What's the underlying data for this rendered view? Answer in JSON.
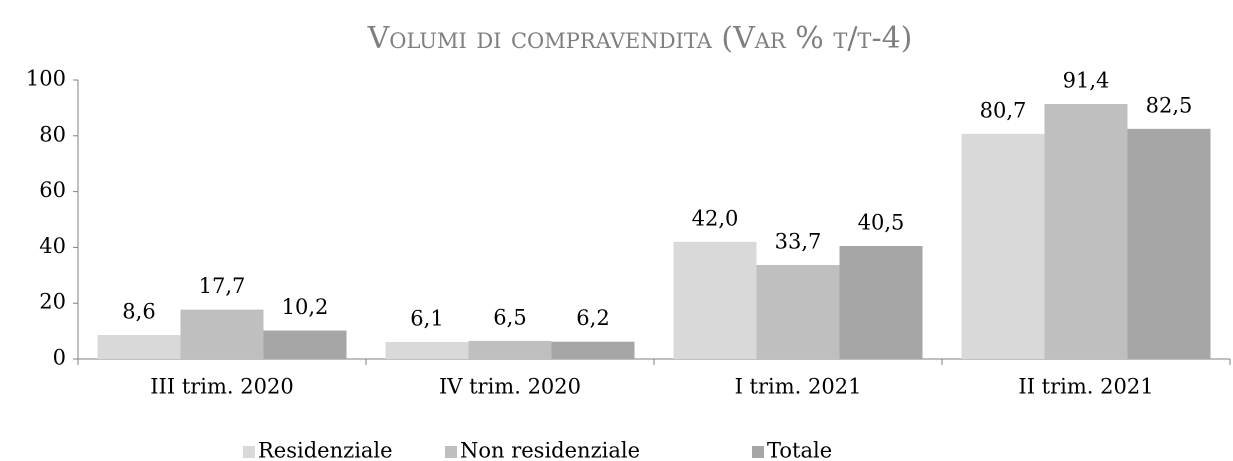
{
  "chart_data": {
    "type": "bar",
    "title": "Volumi di compravendita (Var % t/t-4)",
    "categories": [
      "III trim. 2020",
      "IV trim. 2020",
      "I trim. 2021",
      "II trim. 2021"
    ],
    "series": [
      {
        "name": "Residenziale",
        "color": "#d9d9d9",
        "values": [
          8.6,
          6.1,
          42.0,
          80.7
        ],
        "value_labels": [
          "8,6",
          "6,1",
          "42,0",
          "80,7"
        ]
      },
      {
        "name": "Non residenziale",
        "color": "#bfbfbf",
        "values": [
          17.7,
          6.5,
          33.7,
          91.4
        ],
        "value_labels": [
          "17,7",
          "6,5",
          "33,7",
          "91,4"
        ]
      },
      {
        "name": "Totale",
        "color": "#a6a6a6",
        "values": [
          10.2,
          6.2,
          40.5,
          82.5
        ],
        "value_labels": [
          "10,2",
          "6,2",
          "40,5",
          "82,5"
        ]
      }
    ],
    "ylim": [
      0,
      100
    ],
    "yticks": [
      0,
      20,
      40,
      60,
      80,
      100
    ],
    "grid": false,
    "legend": "bottom"
  }
}
